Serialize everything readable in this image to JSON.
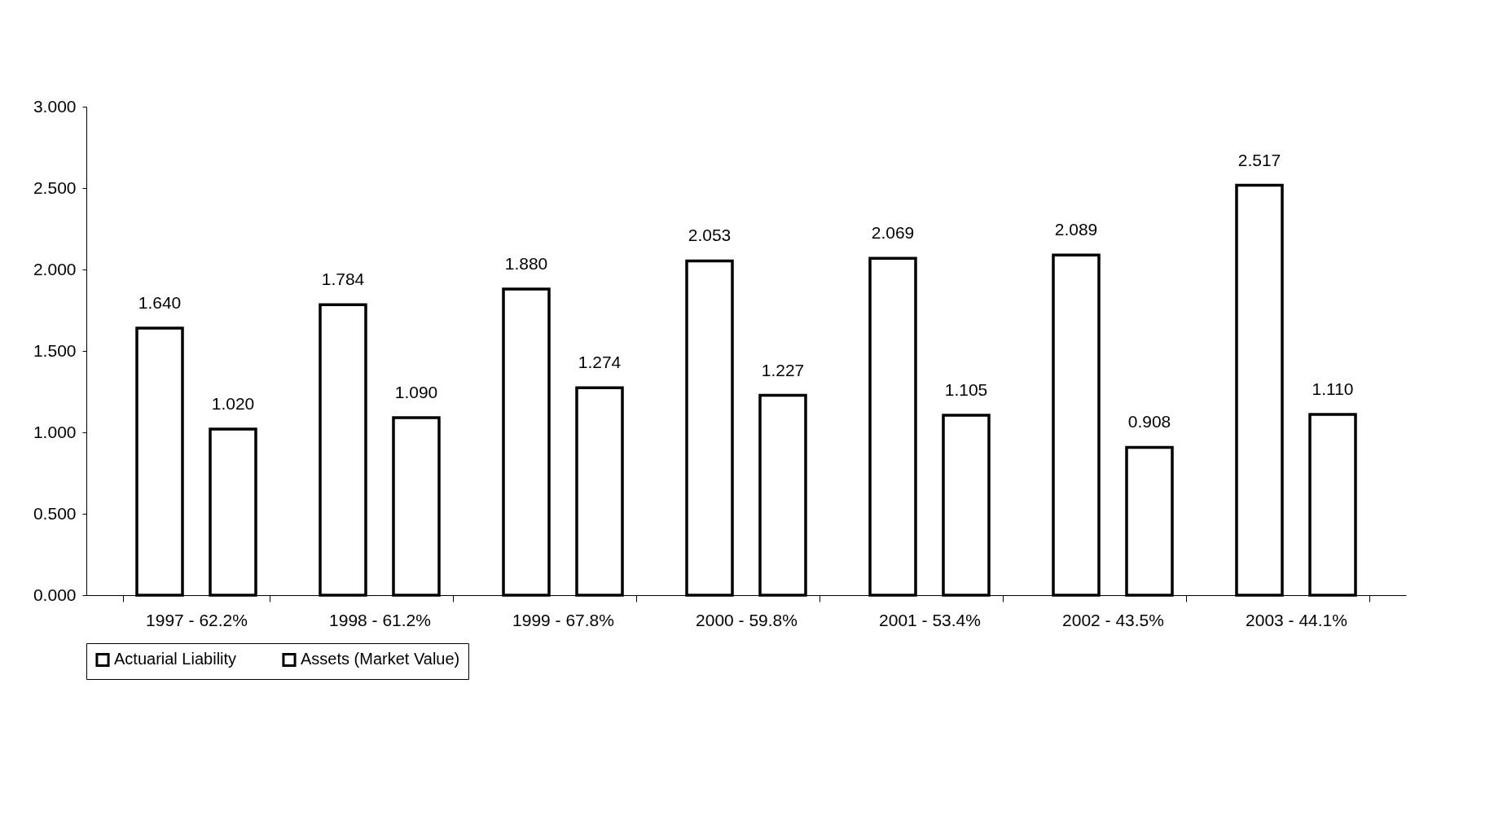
{
  "chart_data": {
    "type": "bar",
    "categories": [
      "1997 - 62.2%",
      "1998 - 61.2%",
      "1999 - 67.8%",
      "2000 - 59.8%",
      "2001 - 53.4%",
      "2002 - 43.5%",
      "2003 - 44.1%"
    ],
    "series": [
      {
        "name": "Actuarial Liability",
        "color": "#ffffff",
        "values": [
          1.64,
          1.784,
          1.88,
          2.053,
          2.069,
          2.089,
          2.517
        ],
        "value_labels": [
          "1.640",
          "1.784",
          "1.880",
          "2.053",
          "2.069",
          "2.089",
          "2.517"
        ]
      },
      {
        "name": "Assets (Market Value)",
        "color": "#ffffff",
        "values": [
          1.02,
          1.09,
          1.274,
          1.227,
          1.105,
          0.908,
          1.11
        ],
        "value_labels": [
          "1.020",
          "1.090",
          "1.274",
          "1.227",
          "1.105",
          "0.908",
          "1.110"
        ]
      }
    ],
    "ylim": [
      0,
      3
    ],
    "yticks": [
      {
        "value": 0,
        "label": "0.000"
      },
      {
        "value": 0.5,
        "label": "0.500"
      },
      {
        "value": 1,
        "label": "1.000"
      },
      {
        "value": 1.5,
        "label": "1.500"
      },
      {
        "value": 2,
        "label": "2.000"
      },
      {
        "value": 2.5,
        "label": "2.500"
      },
      {
        "value": 3,
        "label": "3.000"
      }
    ],
    "grid": false,
    "legend": "bottom"
  }
}
